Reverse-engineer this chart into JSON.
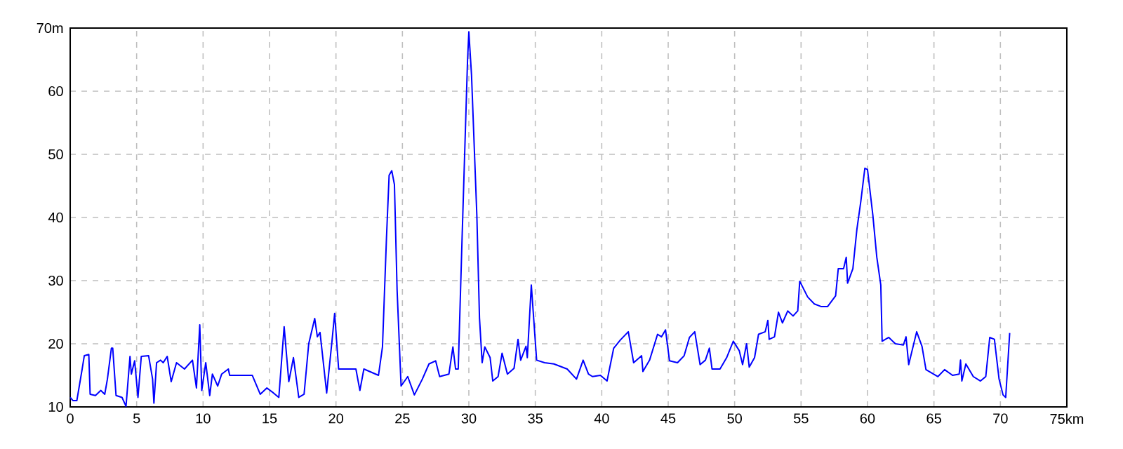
{
  "chart_data": {
    "type": "line",
    "grid": true,
    "xlim": [
      0,
      75
    ],
    "ylim": [
      10,
      70
    ],
    "xticks": [
      0,
      5,
      10,
      15,
      20,
      25,
      30,
      35,
      40,
      45,
      50,
      55,
      60,
      65,
      70,
      {
        "value": 75,
        "label": "75km"
      }
    ],
    "yticks": [
      10,
      20,
      30,
      40,
      50,
      60,
      {
        "value": 70,
        "label": "70m"
      }
    ],
    "series": [
      {
        "color": "#0000ff",
        "x": [
          0,
          0.2,
          0.5,
          0.9,
          1.06,
          1.4,
          1.5,
          1.9,
          2.3,
          2.6,
          2.8,
          3.1,
          3.2,
          3.45,
          3.9,
          4.2,
          4.5,
          4.6,
          4.85,
          5.1,
          5.35,
          5.9,
          6.2,
          6.3,
          6.5,
          6.8,
          7.0,
          7.3,
          7.6,
          8.0,
          8.6,
          9.2,
          9.5,
          9.75,
          9.9,
          10.2,
          10.5,
          10.7,
          11.1,
          11.4,
          11.9,
          12.0,
          13.0,
          13.7,
          14.3,
          14.8,
          15.3,
          15.7,
          16.1,
          16.45,
          16.8,
          17.2,
          17.6,
          17.95,
          18.4,
          18.6,
          18.8,
          19.3,
          19.7,
          19.9,
          20.2,
          21.5,
          21.8,
          22.1,
          23.2,
          23.5,
          23.8,
          24.0,
          24.2,
          24.4,
          24.6,
          24.9,
          25.4,
          25.9,
          26.5,
          27.0,
          27.5,
          27.8,
          28.5,
          28.8,
          29.0,
          29.2,
          29.5,
          29.9,
          30.0,
          30.2,
          30.6,
          30.8,
          31.0,
          31.2,
          31.6,
          31.8,
          32.2,
          32.5,
          32.9,
          33.4,
          33.7,
          33.9,
          34.3,
          34.4,
          34.7,
          35.1,
          35.7,
          36.4,
          37.4,
          38.1,
          38.6,
          39.0,
          39.3,
          39.9,
          40.4,
          40.9,
          41.4,
          42.0,
          42.4,
          43.0,
          43.1,
          43.6,
          44.2,
          44.5,
          44.8,
          45.1,
          45.7,
          46.2,
          46.6,
          47.0,
          47.4,
          47.8,
          48.1,
          48.3,
          48.9,
          49.4,
          49.9,
          50.35,
          50.6,
          50.9,
          51.1,
          51.5,
          51.8,
          52.3,
          52.5,
          52.6,
          53.0,
          53.3,
          53.6,
          54.0,
          54.4,
          54.75,
          54.9,
          55.5,
          56.0,
          56.5,
          57.0,
          57.6,
          57.8,
          58.2,
          58.4,
          58.5,
          58.9,
          59.2,
          59.5,
          59.8,
          60.0,
          60.4,
          60.7,
          61.0,
          61.1,
          61.6,
          62.1,
          62.7,
          62.9,
          63.1,
          63.7,
          64.1,
          64.4,
          65.3,
          65.8,
          66.4,
          66.9,
          67.0,
          67.1,
          67.4,
          67.96,
          68.5,
          68.9,
          69.2,
          69.55,
          69.9,
          70.2,
          70.4,
          70.7
        ],
        "values": [
          11.5,
          11,
          11,
          16,
          18.1,
          18.3,
          12,
          11.8,
          12.6,
          12,
          14.4,
          19.3,
          19.3,
          11.8,
          11.5,
          10.1,
          18,
          15.2,
          17.3,
          11.5,
          18,
          18.1,
          14.4,
          10.6,
          17,
          17.4,
          17,
          18,
          14,
          17,
          16,
          17.4,
          13,
          23,
          12.6,
          17,
          11.8,
          15.2,
          13.3,
          15.2,
          16,
          15,
          15,
          15,
          12,
          13,
          12.2,
          11.5,
          22.7,
          14,
          17.8,
          11.5,
          12,
          20,
          24,
          21.1,
          21.8,
          12.2,
          20.4,
          24.8,
          16,
          16,
          12.6,
          16,
          15,
          19.5,
          36.7,
          46.7,
          47.4,
          45.2,
          28.5,
          13.3,
          14.8,
          11.9,
          14.4,
          16.8,
          17.3,
          14.8,
          15.2,
          19.5,
          16,
          16,
          37.4,
          64.8,
          69.4,
          62.6,
          40.4,
          24.1,
          17,
          19.5,
          17.8,
          14.1,
          14.8,
          18.5,
          15.2,
          16.1,
          20.7,
          17.4,
          19.6,
          17.8,
          29.3,
          17.4,
          17,
          16.8,
          16,
          14.4,
          17.4,
          15.2,
          14.8,
          15,
          14.1,
          19.3,
          20.6,
          21.9,
          17,
          18.1,
          15.6,
          17.4,
          21.5,
          21.1,
          22.2,
          17.3,
          17,
          18.1,
          21,
          21.9,
          16.7,
          17.4,
          19.3,
          16,
          16,
          17.8,
          20.4,
          18.9,
          16.7,
          20,
          16.3,
          17.8,
          21.5,
          21.9,
          23.7,
          20.7,
          21.1,
          25,
          23.3,
          25.2,
          24.4,
          25.2,
          29.9,
          27.4,
          26.3,
          25.9,
          25.9,
          27.6,
          31.9,
          31.9,
          33.7,
          29.6,
          31.9,
          38.1,
          42.6,
          47.8,
          47.6,
          40.4,
          33.7,
          29.3,
          20.4,
          21,
          20,
          19.8,
          21.1,
          16.7,
          21.9,
          19.6,
          15.9,
          14.8,
          15.9,
          15,
          15.2,
          17.4,
          14.1,
          16.8,
          14.8,
          14.1,
          14.8,
          21,
          20.7,
          14.4,
          11.9,
          11.5,
          21.7
        ]
      }
    ]
  }
}
